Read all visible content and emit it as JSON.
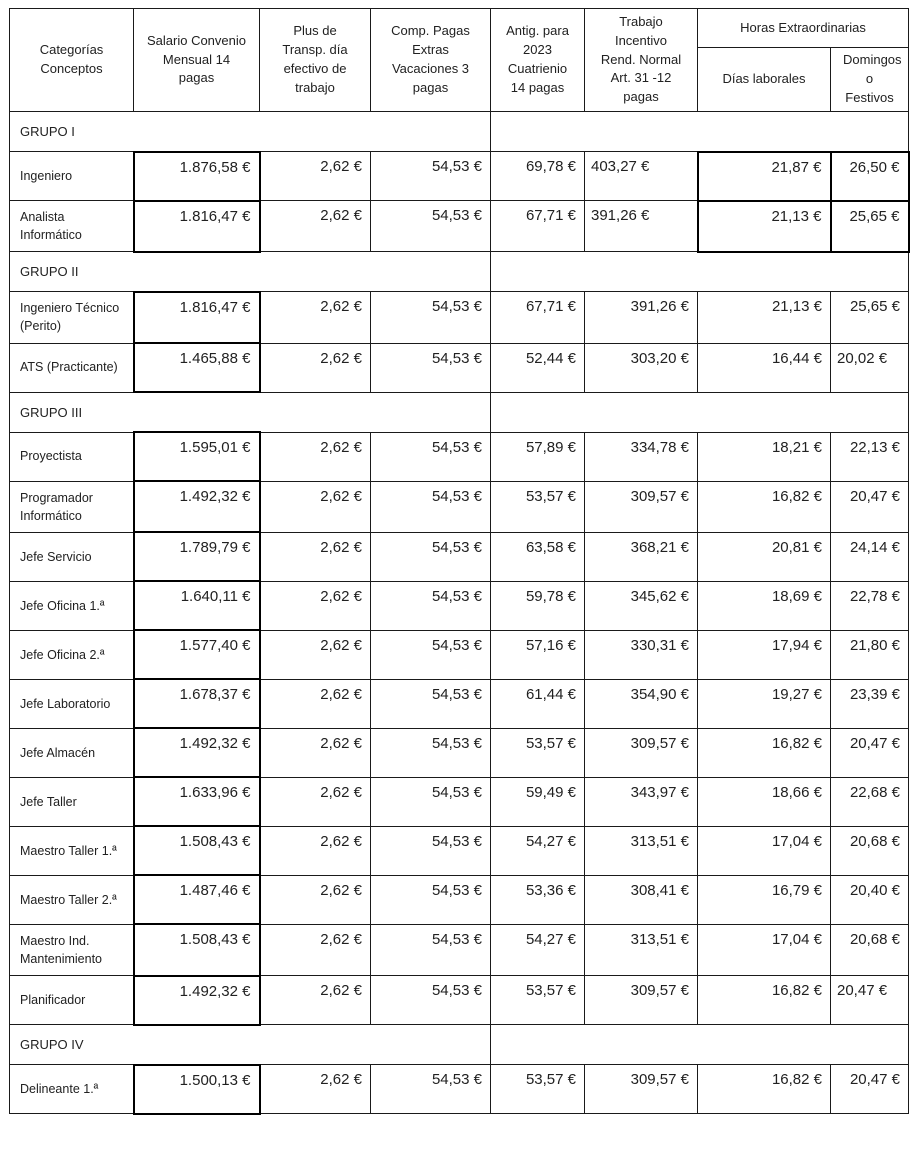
{
  "colors": {
    "background": "#ffffff",
    "text": "#212121",
    "border": "#000000"
  },
  "table": {
    "corner_label": "Categorías Conceptos",
    "headers": [
      {
        "label": "Salario Convenio Mensual 14 pagas"
      },
      {
        "label": "Plus de Transp. día efectivo de trabajo"
      },
      {
        "label": "Comp. Pagas Extras Vacaciones 3 pagas"
      },
      {
        "label": "Antig. para 2023 Cuatrienio 14 pagas"
      },
      {
        "label": "Trabajo Incentivo Rend. Normal Art. 31 -12 pagas"
      }
    ],
    "extra_hours_header": {
      "label": "Horas Extraordinarias",
      "subcolumns": [
        "Días laborales",
        "Domingos o Festivos"
      ]
    },
    "rows": [
      {
        "type": "group",
        "label": "GRUPO I"
      },
      {
        "type": "data",
        "label": "Ingeniero",
        "values": [
          "1.876,58 €",
          "2,62 €",
          "54,53 €",
          "69,78 €",
          "403,27 €",
          "21,87 €",
          "26,50 €"
        ],
        "left_values": [
          4
        ],
        "hx_thick": true
      },
      {
        "type": "data",
        "label": "Analista Informático",
        "values": [
          "1.816,47 €",
          "2,62 €",
          "54,53 €",
          "67,71 €",
          "391,26 €",
          "21,13 €",
          "25,65 €"
        ],
        "left_values": [
          4
        ],
        "hx_thick": true
      },
      {
        "type": "group",
        "label": "GRUPO II"
      },
      {
        "type": "data",
        "label": "Ingeniero Técnico (Perito)",
        "values": [
          "1.816,47 €",
          "2,62 €",
          "54,53 €",
          "67,71 €",
          "391,26 €",
          "21,13 €",
          "25,65 €"
        ],
        "left_values": []
      },
      {
        "type": "data",
        "label": "ATS (Practicante)",
        "values": [
          "1.465,88 €",
          "2,62 €",
          "54,53 €",
          "52,44 €",
          "303,20 €",
          "16,44 €",
          "20,02 €"
        ],
        "left_values": [
          6
        ]
      },
      {
        "type": "group",
        "label": "GRUPO III"
      },
      {
        "type": "data",
        "label": "Proyectista",
        "values": [
          "1.595,01 €",
          "2,62 €",
          "54,53 €",
          "57,89 €",
          "334,78 €",
          "18,21 €",
          "22,13 €"
        ],
        "left_values": []
      },
      {
        "type": "data",
        "label": "Programador Informático",
        "values": [
          "1.492,32 €",
          "2,62 €",
          "54,53 €",
          "53,57 €",
          "309,57 €",
          "16,82 €",
          "20,47 €"
        ],
        "left_values": []
      },
      {
        "type": "data",
        "label": "Jefe Servicio",
        "values": [
          "1.789,79 €",
          "2,62 €",
          "54,53 €",
          "63,58 €",
          "368,21 €",
          "20,81 €",
          "24,14 €"
        ],
        "left_values": []
      },
      {
        "type": "data",
        "label": "Jefe Oficina 1.ª",
        "values": [
          "1.640,11 €",
          "2,62 €",
          "54,53 €",
          "59,78 €",
          "345,62 €",
          "18,69 €",
          "22,78 €"
        ],
        "left_values": []
      },
      {
        "type": "data",
        "label": "Jefe Oficina 2.ª",
        "values": [
          "1.577,40 €",
          "2,62 €",
          "54,53 €",
          "57,16 €",
          "330,31 €",
          "17,94 €",
          "21,80 €"
        ],
        "left_values": []
      },
      {
        "type": "data",
        "label": "Jefe Laboratorio",
        "values": [
          "1.678,37 €",
          "2,62 €",
          "54,53 €",
          "61,44 €",
          "354,90 €",
          "19,27 €",
          "23,39 €"
        ],
        "left_values": []
      },
      {
        "type": "data",
        "label": "Jefe Almacén",
        "values": [
          "1.492,32 €",
          "2,62 €",
          "54,53 €",
          "53,57 €",
          "309,57 €",
          "16,82 €",
          "20,47 €"
        ],
        "left_values": []
      },
      {
        "type": "data",
        "label": "Jefe Taller",
        "values": [
          "1.633,96 €",
          "2,62 €",
          "54,53 €",
          "59,49 €",
          "343,97 €",
          "18,66 €",
          "22,68 €"
        ],
        "left_values": []
      },
      {
        "type": "data",
        "label": "Maestro Taller 1.ª",
        "values": [
          "1.508,43 €",
          "2,62 €",
          "54,53 €",
          "54,27 €",
          "313,51 €",
          "17,04 €",
          "20,68 €"
        ],
        "left_values": []
      },
      {
        "type": "data",
        "label": "Maestro Taller 2.ª",
        "values": [
          "1.487,46 €",
          "2,62 €",
          "54,53 €",
          "53,36 €",
          "308,41 €",
          "16,79 €",
          "20,40 €"
        ],
        "left_values": []
      },
      {
        "type": "data",
        "label": "Maestro Ind. Mantenimiento",
        "values": [
          "1.508,43 €",
          "2,62 €",
          "54,53 €",
          "54,27 €",
          "313,51 €",
          "17,04 €",
          "20,68 €"
        ],
        "left_values": []
      },
      {
        "type": "data",
        "label": "Planificador",
        "values": [
          "1.492,32 €",
          "2,62 €",
          "54,53 €",
          "53,57 €",
          "309,57 €",
          "16,82 €",
          "20,47 €"
        ],
        "left_values": [
          6
        ]
      },
      {
        "type": "group",
        "label": "GRUPO IV"
      },
      {
        "type": "data",
        "label": "Delineante 1.ª",
        "values": [
          "1.500,13 €",
          "2,62 €",
          "54,53 €",
          "53,57 €",
          "309,57 €",
          "16,82 €",
          "20,47 €"
        ],
        "left_values": []
      }
    ]
  }
}
